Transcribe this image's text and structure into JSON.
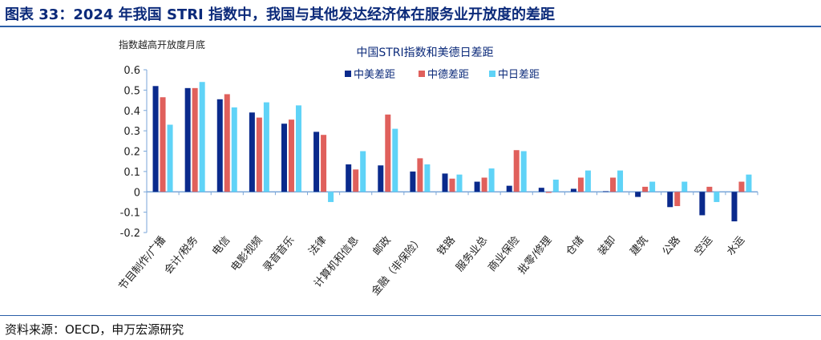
{
  "header": {
    "title": "图表 33：2024 年我国 STRI 指数中，我国与其他发达经济体在服务业开放度的差距"
  },
  "footer": {
    "source": "资料来源：OECD，申万宏源研究"
  },
  "chart_data": {
    "type": "bar",
    "title": "中国STRI指数和美德日差距",
    "annotation": "指数越高开放度月底",
    "ylim": [
      -0.2,
      0.6
    ],
    "yticks": [
      "-0.2",
      "-0.1",
      "0",
      "0.1",
      "0.2",
      "0.3",
      "0.4",
      "0.5",
      "0.6"
    ],
    "legend_position": "top-center",
    "categories": [
      "节目制作/广播",
      "会计/税务",
      "电信",
      "电影视频",
      "录音音乐",
      "法律",
      "计算机和信息",
      "邮政",
      "金融（非保险）",
      "铁路",
      "服务业总",
      "商业保险",
      "批零/修理",
      "仓储",
      "装卸",
      "建筑",
      "公路",
      "空运",
      "水运"
    ],
    "series": [
      {
        "name": "中美差距",
        "color": "#0a2a8c",
        "values": [
          0.52,
          0.51,
          0.455,
          0.39,
          0.335,
          0.295,
          0.135,
          0.13,
          0.1,
          0.09,
          0.05,
          0.03,
          0.02,
          0.015,
          0,
          -0.025,
          -0.075,
          -0.115,
          -0.145
        ]
      },
      {
        "name": "中德差距",
        "color": "#e0605c",
        "values": [
          0.465,
          0.51,
          0.48,
          0.365,
          0.355,
          0.28,
          0.11,
          0.38,
          0.165,
          0.065,
          0.07,
          0.205,
          -0.005,
          0.07,
          0.07,
          0.025,
          -0.07,
          0.025,
          0.05
        ]
      },
      {
        "name": "中日差距",
        "color": "#5fd3f7",
        "values": [
          0.33,
          0.54,
          0.415,
          0.44,
          0.425,
          -0.05,
          0.2,
          0.31,
          0.135,
          0.085,
          0.115,
          0.2,
          0.06,
          0.105,
          0.105,
          0.05,
          0.05,
          -0.05,
          0.085
        ]
      }
    ]
  }
}
